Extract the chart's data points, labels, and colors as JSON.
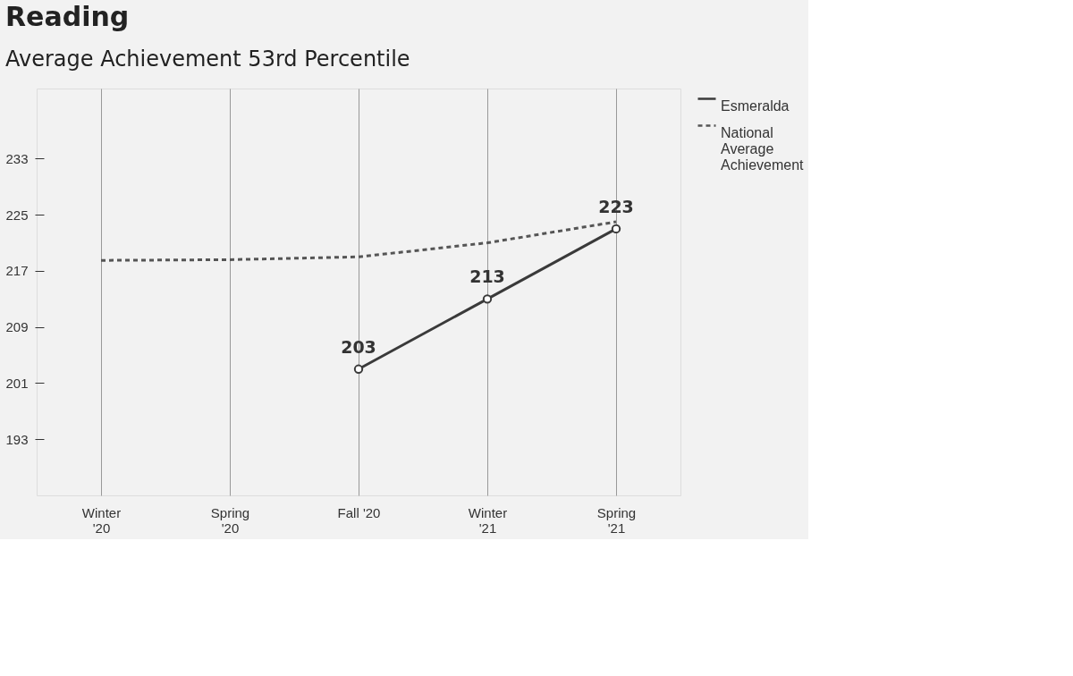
{
  "chart_data": {
    "type": "line",
    "title": "Reading",
    "subtitle": "Average Achievement 53rd Percentile",
    "categories": [
      "Winter '20",
      "Spring '20",
      "Fall '20",
      "Winter '21",
      "Spring '21"
    ],
    "series": [
      {
        "name": "Esmeralda",
        "color": "#3a3a3a",
        "values": [
          null,
          null,
          203,
          213,
          223
        ],
        "marker": "circle",
        "line_style": "solid",
        "value_labels": [
          null,
          null,
          "203",
          "213",
          "223"
        ]
      },
      {
        "name": "National Average Achievement",
        "color": "#555555",
        "values": [
          218.5,
          218.6,
          219,
          221,
          224
        ],
        "marker": "none",
        "line_style": "dashed"
      }
    ],
    "ylim": [
      185,
      243
    ],
    "yticks": [
      193,
      201,
      209,
      217,
      225,
      233
    ],
    "grid": "x",
    "legend": "right"
  }
}
